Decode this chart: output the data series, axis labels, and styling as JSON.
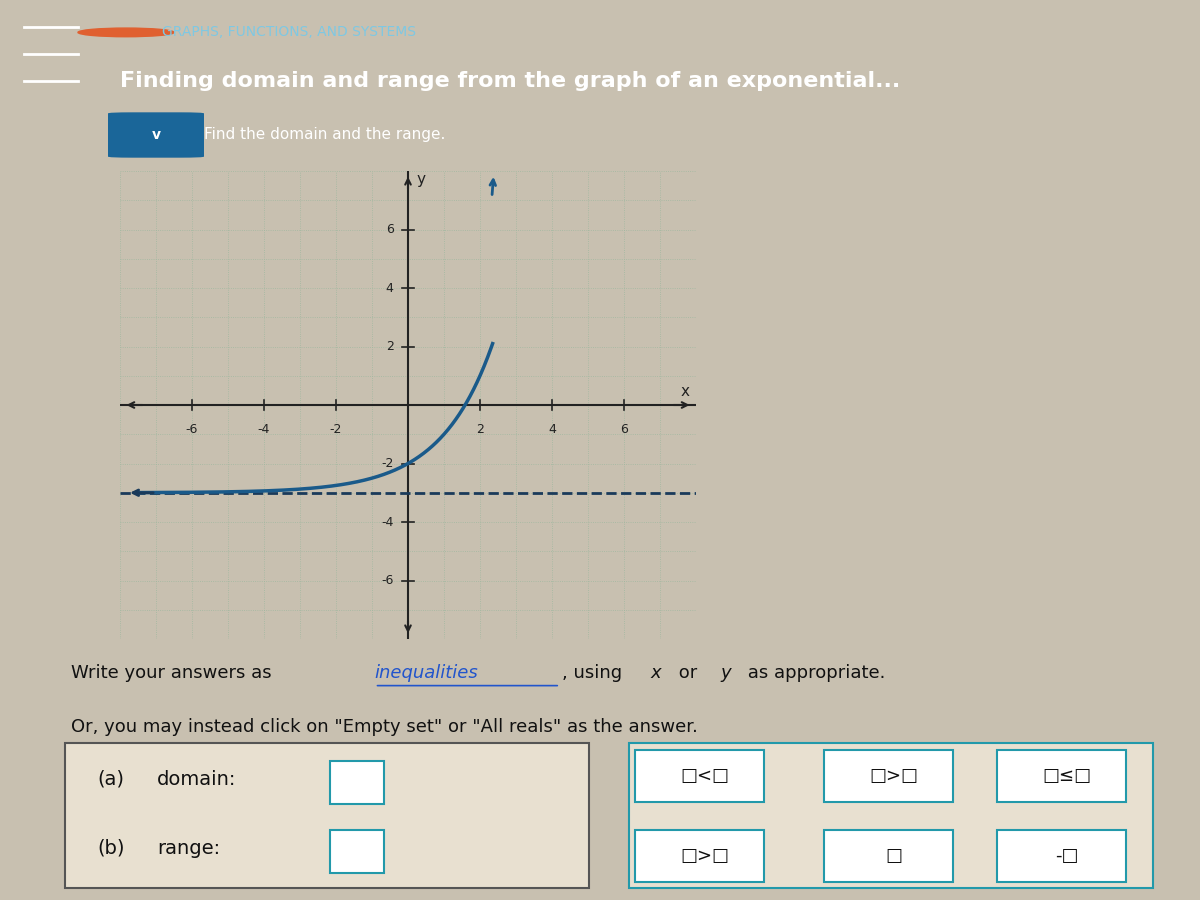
{
  "title_line1": "GRAPHS, FUNCTIONS, AND SYSTEMS",
  "title_line2": "Finding domain and range from the graph of an exponential...",
  "header_bg_color": "#1a3a6b",
  "header_text_color1": "#7ec8e3",
  "header_text_color2": "#ffffff",
  "subheader_text": "Find the domain and the range.",
  "subheader_bg": "#2255aa",
  "graph_bg_color": "#d8e8d8",
  "grid_color": "#a0b8a0",
  "axis_color": "#222222",
  "curve_color": "#1a5a8a",
  "asymptote_color": "#1a3a5a",
  "asymptote_y": -3,
  "xlim": [
    -8,
    8
  ],
  "ylim": [
    -8,
    8
  ],
  "xticks": [
    -6,
    -4,
    -2,
    2,
    4,
    6
  ],
  "yticks": [
    -6,
    -4,
    -2,
    2,
    4,
    6
  ],
  "instructions_line1": "Write your answers as inequalities, using x or y as appropriate.",
  "instructions_line2": "Or, you may instead click on \"Empty set\" or \"All reals\" as the answer.",
  "label_a": "(a)",
  "label_domain": "domain:",
  "label_b": "(b)",
  "label_range": "range:",
  "page_bg": "#c8c0b0",
  "box_bg": "#e8e0d0",
  "answer_box_color": "#2299aa",
  "operator_box_color": "#2299aa"
}
